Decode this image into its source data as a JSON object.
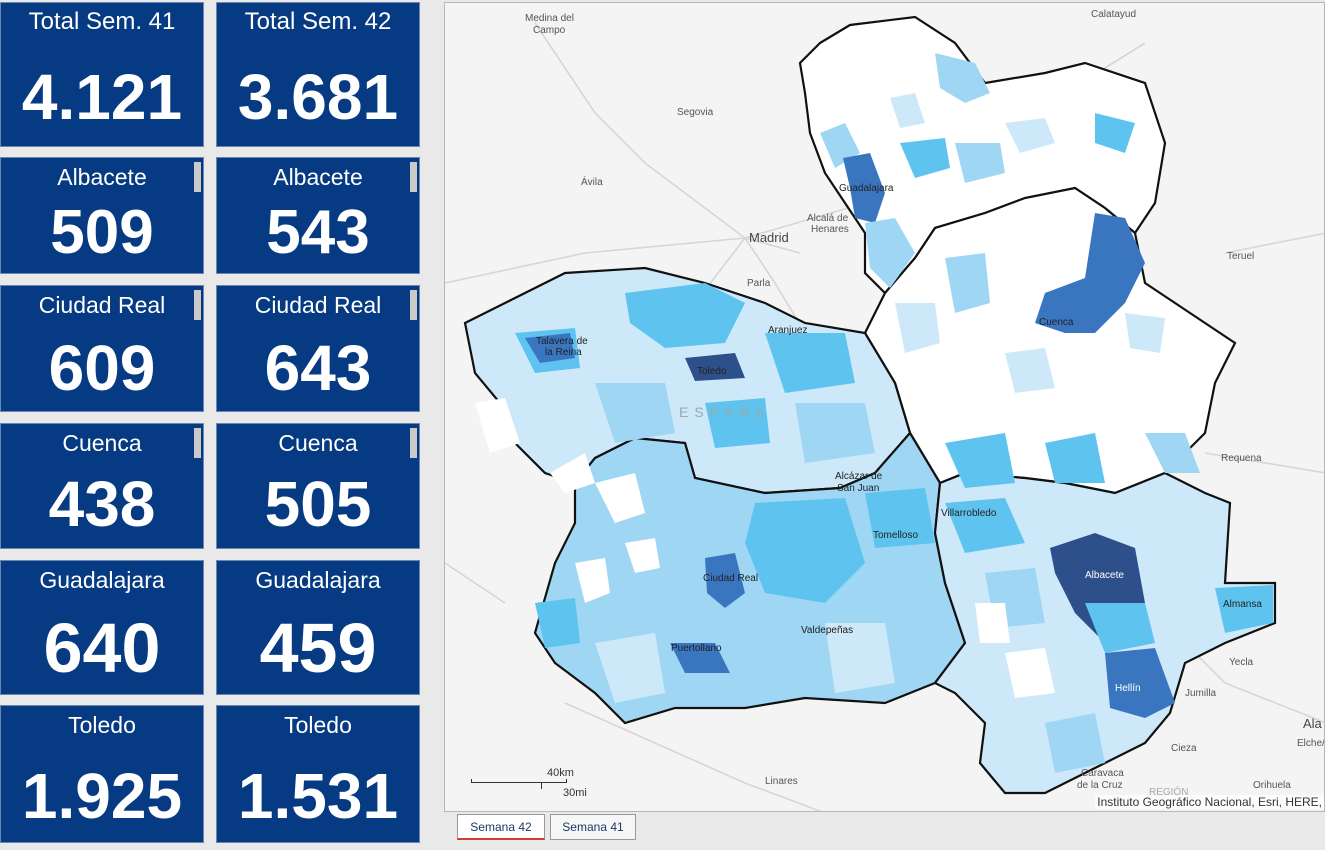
{
  "cards": [
    {
      "label": "Total Sem. 41",
      "value": "4.121"
    },
    {
      "label": "Total Sem. 42",
      "value": "3.681"
    },
    {
      "label": "Albacete",
      "value": "509"
    },
    {
      "label": "Albacete",
      "value": "543"
    },
    {
      "label": "Ciudad Real",
      "value": "609"
    },
    {
      "label": "Ciudad Real",
      "value": "643"
    },
    {
      "label": "Cuenca",
      "value": "438"
    },
    {
      "label": "Cuenca",
      "value": "505"
    },
    {
      "label": "Guadalajara",
      "value": "640"
    },
    {
      "label": "Guadalajara",
      "value": "459"
    },
    {
      "label": "Toledo",
      "value": "1.925"
    },
    {
      "label": "Toledo",
      "value": "1.531"
    }
  ],
  "map": {
    "places": {
      "medina": [
        "Medina del",
        "Campo"
      ],
      "calatayud": "Calatayud",
      "segovia": "Segovia",
      "avila": "Ávila",
      "guadalajara": "Guadalajara",
      "alcala": [
        "Alcalá de",
        "Henares"
      ],
      "madrid": "Madrid",
      "parla": "Parla",
      "teruel": "Teruel",
      "aranjuez": "Aranjuez",
      "talavera": [
        "Talavera de",
        "la Reina"
      ],
      "toledo": "Toledo",
      "cuenca": "Cuenca",
      "espana": "ESPAÑA",
      "requena": "Requena",
      "alcazar": [
        "Alcázar de",
        "San Juan"
      ],
      "villarrobledo": "Villarrobledo",
      "tomelloso": "Tomelloso",
      "ciudadreal": "Ciudad Real",
      "albacete": "Albacete",
      "almansa": "Almansa",
      "valdepenas": "Valdepeñas",
      "puertollano": "Puertollano",
      "yecla": "Yecla",
      "hellin": "Hellín",
      "jumilla": "Jumilla",
      "ala": "Ala",
      "elche": "Elche/",
      "cieza": "Cieza",
      "linares": "Linares",
      "caravaca": [
        "Caravaca",
        "de la Cruz"
      ],
      "region": "REGIÓN",
      "orihuela": "Orihuela"
    },
    "scale_km": "40km",
    "scale_mi": "30mi",
    "attribution": "Instituto Geográfico Nacional, Esri, HERE,",
    "colors": {
      "background": "#f4f4f4",
      "level0": "#ffffff",
      "level1": "#cde9f9",
      "level2": "#9fd6f4",
      "level3": "#5ec4ef",
      "level4": "#3a76c0",
      "level5": "#2d4f8a",
      "border": "#111111",
      "card": "#063a82"
    }
  },
  "tabs": [
    {
      "label": "Semana 42",
      "active": true
    },
    {
      "label": "Semana 41",
      "active": false
    }
  ]
}
